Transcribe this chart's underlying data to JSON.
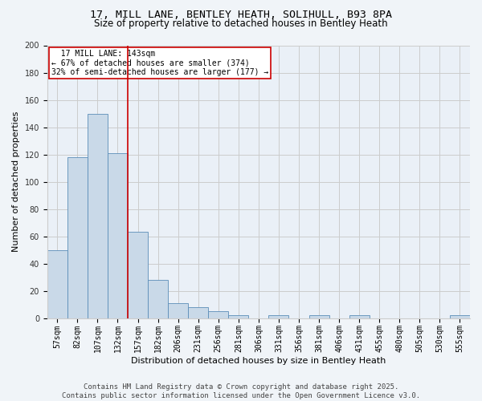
{
  "title_line1": "17, MILL LANE, BENTLEY HEATH, SOLIHULL, B93 8PA",
  "title_line2": "Size of property relative to detached houses in Bentley Heath",
  "xlabel": "Distribution of detached houses by size in Bentley Heath",
  "ylabel": "Number of detached properties",
  "categories": [
    "57sqm",
    "82sqm",
    "107sqm",
    "132sqm",
    "157sqm",
    "182sqm",
    "206sqm",
    "231sqm",
    "256sqm",
    "281sqm",
    "306sqm",
    "331sqm",
    "356sqm",
    "381sqm",
    "406sqm",
    "431sqm",
    "455sqm",
    "480sqm",
    "505sqm",
    "530sqm",
    "555sqm"
  ],
  "values": [
    50,
    118,
    150,
    121,
    63,
    28,
    11,
    8,
    5,
    2,
    0,
    2,
    0,
    2,
    0,
    2,
    0,
    0,
    0,
    0,
    2
  ],
  "bar_color": "#c9d9e8",
  "bar_edge_color": "#5b8db8",
  "bar_linewidth": 0.6,
  "annotation_line1": "  17 MILL LANE: 143sqm",
  "annotation_line2": "← 67% of detached houses are smaller (374)",
  "annotation_line3": "32% of semi-detached houses are larger (177) →",
  "annotation_box_color": "#ffffff",
  "annotation_box_edge": "#cc0000",
  "vline_color": "#cc0000",
  "vline_x": 3.5,
  "ylim": [
    0,
    200
  ],
  "yticks": [
    0,
    20,
    40,
    60,
    80,
    100,
    120,
    140,
    160,
    180,
    200
  ],
  "grid_color": "#cccccc",
  "background_color": "#f0f4f8",
  "plot_bg_color": "#eaf0f7",
  "footer": "Contains HM Land Registry data © Crown copyright and database right 2025.\nContains public sector information licensed under the Open Government Licence v3.0.",
  "title_fontsize": 9.5,
  "subtitle_fontsize": 8.5,
  "axis_label_fontsize": 8,
  "tick_fontsize": 7,
  "annotation_fontsize": 7,
  "footer_fontsize": 6.5
}
